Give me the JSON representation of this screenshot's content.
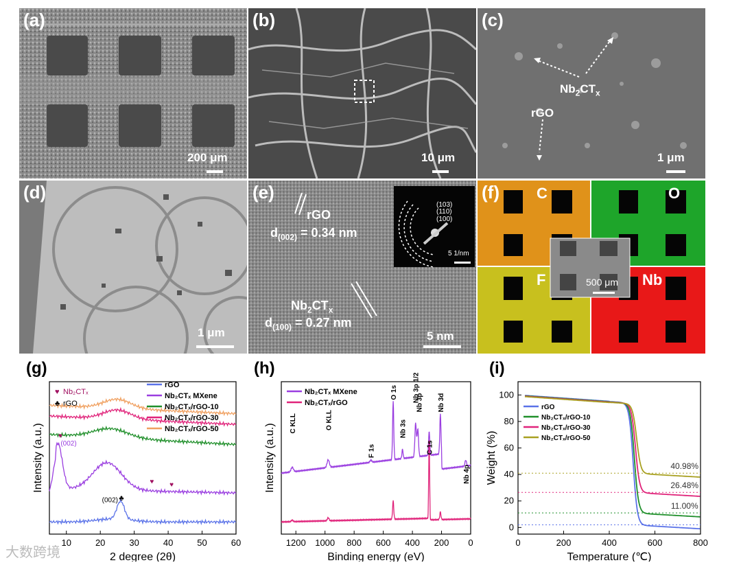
{
  "panels": {
    "a": {
      "label": "(a)",
      "scale": "200 μm"
    },
    "b": {
      "label": "(b)",
      "scale": "10 μm"
    },
    "c": {
      "label": "(c)",
      "scale": "1 μm",
      "ann_nb": "Nb",
      "ann_nb_sub1": "2",
      "ann_nb_mid": "CT",
      "ann_nb_sub2": "x",
      "ann_rgo": "rGO"
    },
    "d": {
      "label": "(d)",
      "scale": "1 μm"
    },
    "e": {
      "label": "(e)",
      "scale": "5 nm",
      "rgo": "rGO",
      "d1_pre": "d",
      "d1_sub": "(002)",
      "d1_val": " = 0.34 nm",
      "nb_pre": "Nb",
      "nb_sub1": "2",
      "nb_mid": "CT",
      "nb_sub2": "x",
      "d2_pre": "d",
      "d2_sub": "(100)",
      "d2_val": " = 0.27 nm",
      "inset_103": "(103)",
      "inset_110": "(110)",
      "inset_100": "(100)",
      "inset_scale": "5 1/nm"
    },
    "f": {
      "label": "(f)",
      "C": "C",
      "O": "O",
      "F": "F",
      "Nb": "Nb",
      "inset_scale": "500 μm",
      "colors": {
        "C": "#e0921a",
        "O": "#1ea52a",
        "F": "#c8c01e",
        "Nb": "#e81818"
      }
    }
  },
  "chart_data": [
    {
      "id": "g",
      "type": "line",
      "label": "(g)",
      "xlabel": "2 degree (2θ)",
      "ylabel": "Intensity (a.u.)",
      "xlim": [
        5,
        60
      ],
      "xticks": [
        10,
        20,
        30,
        40,
        50,
        60
      ],
      "legend": [
        "rGO",
        "Nb₂CTₓ MXene",
        "Nb₂CTₓ/rGO-10",
        "Nb₂CTₓ/rGO-30",
        "Nb₂CTₓ/rGO-50"
      ],
      "legend_colors": [
        "#5a72e8",
        "#9a3ee0",
        "#1f8f2a",
        "#e0237a",
        "#f0a060"
      ],
      "markers_legend": [
        "Nb₂CTₓ",
        "rGO"
      ],
      "annotations": [
        "(002)",
        "(002)"
      ]
    },
    {
      "id": "h",
      "type": "line",
      "label": "(h)",
      "xlabel": "Binding energy (eV)",
      "ylabel": "Intensity (a.u.)",
      "xlim": [
        1300,
        0
      ],
      "xticks": [
        1200,
        1000,
        800,
        600,
        400,
        200,
        0
      ],
      "legend": [
        "Nb₂CTₓ MXene",
        "Nb₂CTₓ/rGO"
      ],
      "legend_colors": [
        "#9a3ee0",
        "#e0237a"
      ],
      "peaks": [
        "C KLL",
        "O KLL",
        "F 1s",
        "O 1s",
        "Nb 3s",
        "Nb 3p 1/2",
        "Nb 3p",
        "C 1s",
        "Nb 3d",
        "Nb 4p"
      ]
    },
    {
      "id": "i",
      "type": "line",
      "label": "(i)",
      "xlabel": "Temperature (℃)",
      "ylabel": "Weight (%)",
      "xlim": [
        0,
        800
      ],
      "ylim": [
        -5,
        110
      ],
      "xticks": [
        0,
        200,
        400,
        600,
        800
      ],
      "yticks": [
        0,
        20,
        40,
        60,
        80,
        100
      ],
      "legend": [
        "rGO",
        "Nb₂CTₓ/rGO-10",
        "Nb₂CTₓ/rGO-30",
        "Nb₂CTₓ/rGO-50"
      ],
      "legend_colors": [
        "#5a72e8",
        "#1f8f2a",
        "#e0237a",
        "#a8a020"
      ],
      "residues": [
        2,
        11.0,
        26.48,
        40.98
      ],
      "annotations": [
        "40.98%",
        "26.48%",
        "11.00%"
      ]
    }
  ],
  "watermark": "大数跨境"
}
